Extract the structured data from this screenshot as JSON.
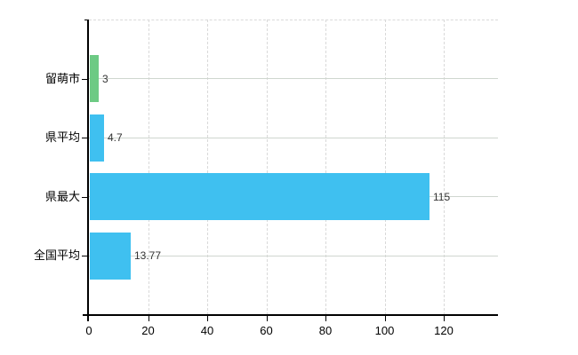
{
  "chart_data": {
    "type": "bar",
    "orientation": "horizontal",
    "title": "",
    "xlabel": "",
    "ylabel": "",
    "legend": false,
    "grid": "vertical dashed gridlines at each x tick, solid light row line at each category center, dashed top border",
    "categories": [
      "留萌市",
      "県平均",
      "県最大",
      "全国平均"
    ],
    "values": [
      3,
      4.7,
      115,
      13.77
    ],
    "value_labels": [
      "3",
      "4.7",
      "115",
      "13.77"
    ],
    "bar_colors": [
      "#6dca84",
      "#3fc0f0",
      "#3fc0f0",
      "#3fc0f0"
    ],
    "x_ticks": [
      0,
      20,
      40,
      60,
      80,
      100,
      120
    ],
    "xlim": [
      0,
      138.3
    ]
  },
  "style": {
    "background": "#ffffff",
    "axis_color": "#000000",
    "vgrid_color": "#d9d9d9",
    "row_line_color": "#cfd6cf",
    "bar_green": "#6dca84",
    "bar_blue": "#3fc0f0",
    "value_label_color": "#333333",
    "tick_label_color": "#000000"
  }
}
